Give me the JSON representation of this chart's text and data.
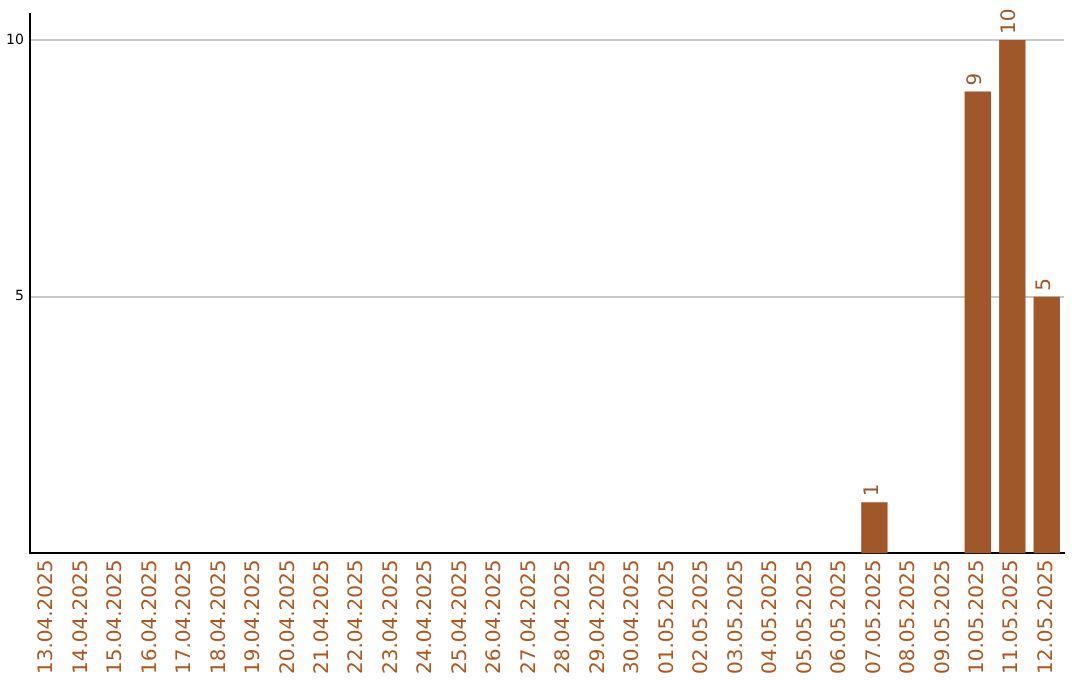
{
  "chart_data": {
    "type": "bar",
    "categories": [
      "13.04.2025",
      "14.04.2025",
      "15.04.2025",
      "16.04.2025",
      "17.04.2025",
      "18.04.2025",
      "19.04.2025",
      "20.04.2025",
      "21.04.2025",
      "22.04.2025",
      "23.04.2025",
      "24.04.2025",
      "25.04.2025",
      "26.04.2025",
      "27.04.2025",
      "28.04.2025",
      "29.04.2025",
      "30.04.2025",
      "01.05.2025",
      "02.05.2025",
      "03.05.2025",
      "04.05.2025",
      "05.05.2025",
      "06.05.2025",
      "07.05.2025",
      "08.05.2025",
      "09.05.2025",
      "10.05.2025",
      "11.05.2025",
      "12.05.2025"
    ],
    "values": [
      0,
      0,
      0,
      0,
      0,
      0,
      0,
      0,
      0,
      0,
      0,
      0,
      0,
      0,
      0,
      0,
      0,
      0,
      0,
      0,
      0,
      0,
      0,
      0,
      1,
      0,
      0,
      9,
      10,
      5
    ],
    "value_labels": [
      null,
      null,
      null,
      null,
      null,
      null,
      null,
      null,
      null,
      null,
      null,
      null,
      null,
      null,
      null,
      null,
      null,
      null,
      null,
      null,
      null,
      null,
      null,
      null,
      "1",
      null,
      null,
      "9",
      "10",
      "5"
    ],
    "color": "#a0582a",
    "ylim": [
      0,
      10.5
    ],
    "yticks": [
      5,
      10
    ],
    "grid": "y",
    "legend": false
  }
}
